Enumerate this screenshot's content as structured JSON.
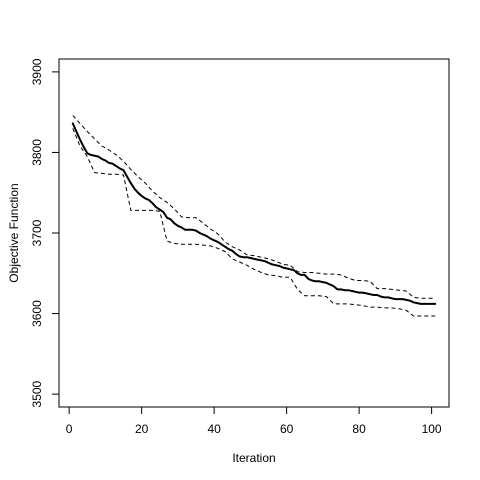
{
  "chart_data": {
    "type": "line",
    "title": "",
    "xlabel": "Iteration",
    "ylabel": "Objective Function",
    "xlim": [
      -2.8,
      104.8
    ],
    "ylim": [
      3484,
      3916
    ],
    "x_ticks": [
      0,
      20,
      40,
      60,
      80,
      100
    ],
    "y_ticks": [
      3500,
      3600,
      3700,
      3800,
      3900
    ],
    "grid": false,
    "legend": "none",
    "colors": {
      "series": "#000000",
      "axes": "#000000",
      "background": "#ffffff"
    },
    "series": [
      {
        "style": "solid-bold",
        "x": [
          1,
          2,
          3,
          4,
          5,
          6,
          8,
          9,
          10,
          11,
          12,
          13,
          14,
          15,
          16,
          17,
          18,
          19,
          20,
          21,
          22,
          23,
          24,
          25,
          26,
          27,
          28,
          29,
          30,
          31,
          32,
          33,
          34,
          35,
          36,
          37,
          38,
          39,
          40,
          41,
          42,
          43,
          44,
          45,
          46,
          47,
          48,
          49,
          50,
          51,
          52,
          53,
          54,
          55,
          56,
          57,
          58,
          59,
          60,
          61,
          62,
          63,
          64,
          65,
          66,
          67,
          68,
          69,
          70,
          71,
          72,
          73,
          74,
          75,
          76,
          77,
          78,
          79,
          80,
          81,
          82,
          83,
          84,
          85,
          86,
          87,
          88,
          89,
          90,
          91,
          92,
          93,
          94,
          95,
          96,
          97,
          98,
          99,
          100,
          101
        ],
        "y": [
          3836,
          3826,
          3816,
          3807,
          3799,
          3797,
          3795,
          3792,
          3790,
          3787,
          3786,
          3783,
          3780,
          3778,
          3770,
          3762,
          3755,
          3750,
          3746,
          3743,
          3741,
          3737,
          3732,
          3729,
          3726,
          3719,
          3717,
          3712,
          3709,
          3707,
          3704,
          3704,
          3704,
          3703,
          3700,
          3698,
          3696,
          3693,
          3691,
          3689,
          3686,
          3683,
          3680,
          3678,
          3674,
          3671,
          3670,
          3670,
          3669,
          3668,
          3667,
          3666,
          3665,
          3663,
          3661,
          3660,
          3659,
          3657,
          3656,
          3655,
          3654,
          3650,
          3648,
          3648,
          3643,
          3641,
          3640,
          3640,
          3639,
          3638,
          3636,
          3634,
          3630,
          3630,
          3629,
          3629,
          3628,
          3627,
          3626,
          3626,
          3625,
          3624,
          3623,
          3623,
          3621,
          3620,
          3620,
          3619,
          3618,
          3618,
          3618,
          3617,
          3616,
          3614,
          3613,
          3612,
          3612,
          3612,
          3612,
          3612
        ]
      },
      {
        "style": "dashed-upper",
        "x": [
          1,
          3,
          5,
          7,
          9,
          11,
          13,
          15,
          17,
          19,
          21,
          23,
          25,
          27,
          29,
          31,
          33,
          35,
          37,
          39,
          41,
          43,
          45,
          47,
          49,
          51,
          53,
          55,
          57,
          59,
          61,
          63,
          65,
          67,
          69,
          71,
          73,
          75,
          77,
          79,
          81,
          83,
          85,
          87,
          89,
          91,
          93,
          95,
          97,
          99,
          101
        ],
        "y": [
          3846,
          3836,
          3826,
          3817,
          3808,
          3803,
          3797,
          3789,
          3779,
          3770,
          3762,
          3752,
          3744,
          3738,
          3730,
          3720,
          3719,
          3719,
          3712,
          3705,
          3699,
          3689,
          3683,
          3679,
          3673,
          3672,
          3670,
          3668,
          3665,
          3661,
          3660,
          3652,
          3651,
          3651,
          3650,
          3649,
          3649,
          3648,
          3644,
          3641,
          3641,
          3640,
          3631,
          3631,
          3630,
          3629,
          3628,
          3620,
          3619,
          3619,
          3619
        ]
      },
      {
        "style": "dashed-lower",
        "x": [
          1,
          3,
          5,
          7,
          9,
          11,
          13,
          15,
          17,
          19,
          21,
          23,
          25,
          27,
          29,
          31,
          33,
          35,
          37,
          39,
          41,
          43,
          45,
          47,
          49,
          51,
          53,
          55,
          57,
          59,
          61,
          63,
          65,
          67,
          69,
          71,
          73,
          75,
          77,
          79,
          81,
          83,
          85,
          87,
          89,
          91,
          93,
          95,
          97,
          99,
          101
        ],
        "y": [
          3830,
          3808,
          3795,
          3775,
          3774,
          3773,
          3773,
          3772,
          3728,
          3728,
          3728,
          3728,
          3727,
          3690,
          3687,
          3686,
          3686,
          3686,
          3685,
          3684,
          3681,
          3677,
          3668,
          3664,
          3660,
          3655,
          3651,
          3648,
          3647,
          3645,
          3645,
          3630,
          3622,
          3622,
          3622,
          3621,
          3612,
          3612,
          3612,
          3611,
          3610,
          3608,
          3608,
          3607,
          3607,
          3606,
          3604,
          3597,
          3597,
          3597,
          3597
        ]
      }
    ]
  }
}
